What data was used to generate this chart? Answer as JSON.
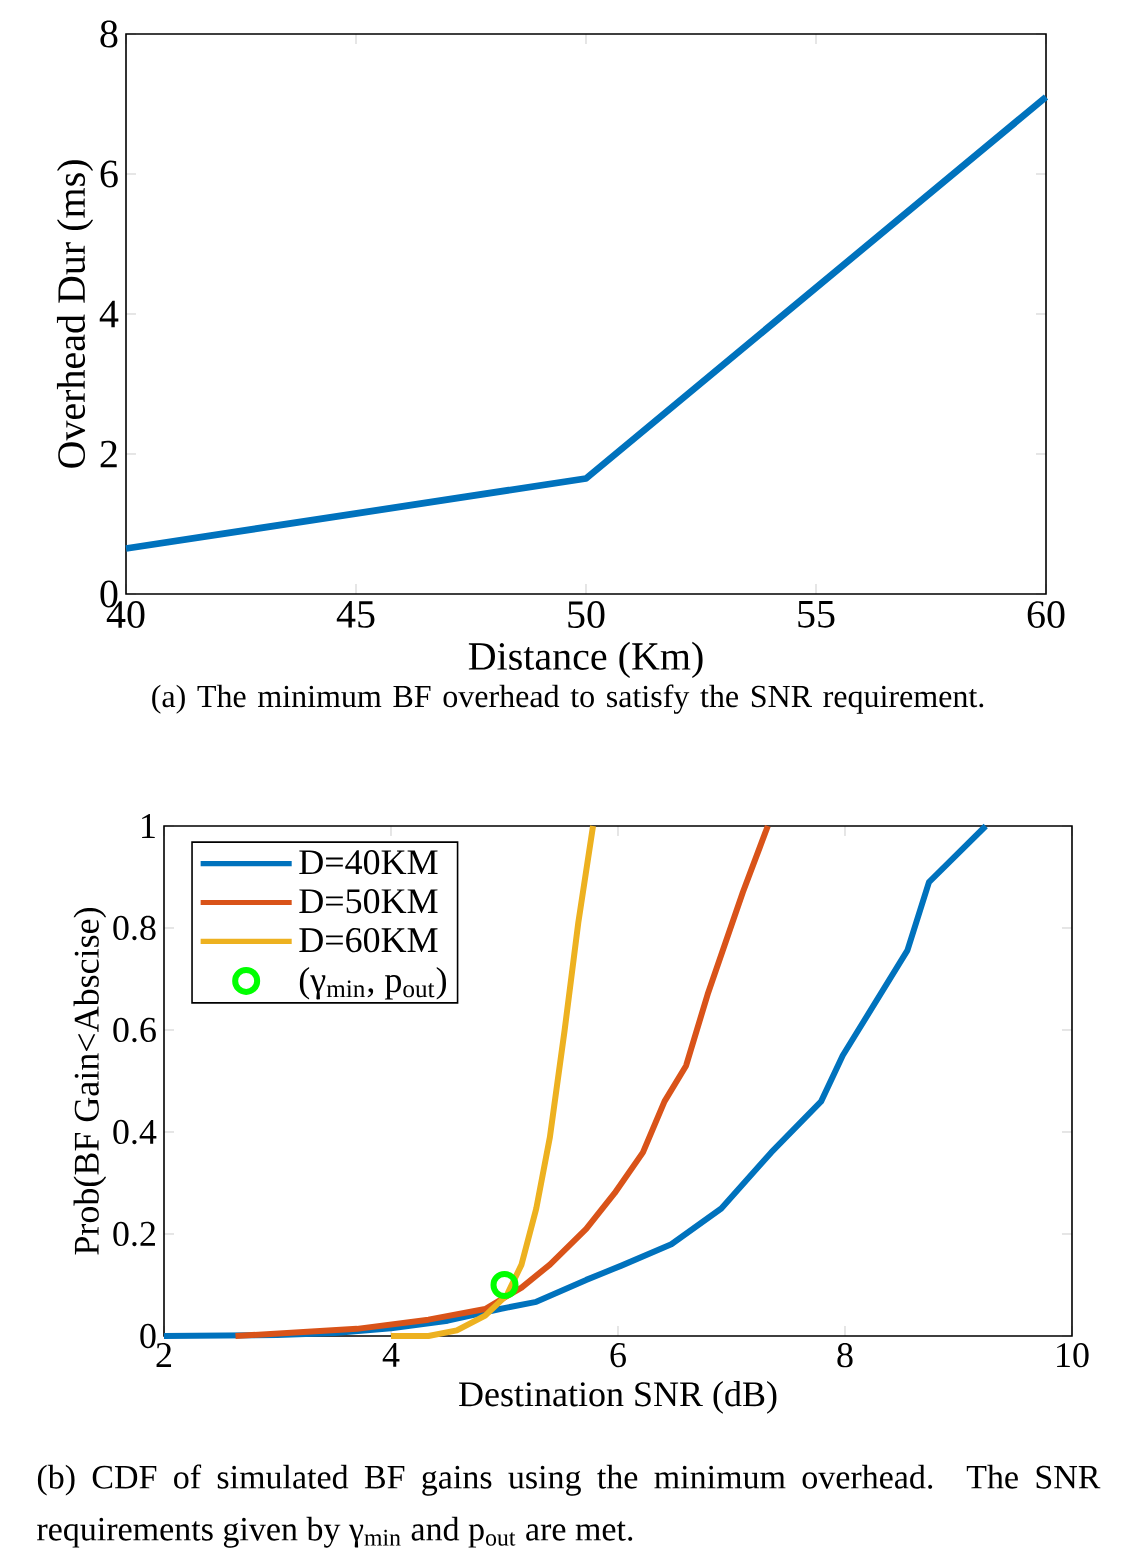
{
  "chart_data": [
    {
      "type": "line",
      "x": [
        40,
        50,
        60
      ],
      "values": [
        0.65,
        1.65,
        7.1
      ],
      "color": "#0072bd",
      "xlim": [
        40,
        60
      ],
      "ylim": [
        0,
        8
      ],
      "xticks": [
        40,
        45,
        50,
        55,
        60
      ],
      "yticks": [
        0,
        2,
        4,
        6,
        8
      ],
      "xlabel": "Distance (Km)",
      "ylabel": "Overhead Dur (ms)",
      "annotations": [
        "(a) The minimum BF overhead to satisfy the SNR requirement."
      ]
    },
    {
      "type": "line",
      "xlim": [
        2,
        10
      ],
      "ylim": [
        0,
        1
      ],
      "xticks": [
        2,
        4,
        6,
        8,
        10
      ],
      "yticks": [
        0,
        0.2,
        0.4,
        0.6,
        0.8,
        1
      ],
      "xlabel": "Destination SNR (dB)",
      "ylabel": "Prob(BF Gain<Abscise)",
      "legend": "top left",
      "series": [
        {
          "name": "D=40KM",
          "color": "#0072bd",
          "x": [
            2,
            3,
            3.5,
            4,
            4.5,
            4.96,
            5.28,
            5.72,
            6.03,
            6.47,
            6.91,
            7.35,
            7.79,
            7.98,
            8.55,
            8.74,
            9.24
          ],
          "values": [
            0,
            0.002,
            0.006,
            0.015,
            0.03,
            0.053,
            0.067,
            0.11,
            0.138,
            0.18,
            0.25,
            0.36,
            0.46,
            0.55,
            0.756,
            0.89,
            1
          ]
        },
        {
          "name": "D=50KM",
          "color": "#d95319",
          "x": [
            2.63,
            3.7,
            4.33,
            4.83,
            5.15,
            5.4,
            5.72,
            5.97,
            6.22,
            6.41,
            6.6,
            6.79,
            7.1,
            7.32
          ],
          "values": [
            0,
            0.014,
            0.032,
            0.053,
            0.095,
            0.14,
            0.21,
            0.28,
            0.36,
            0.46,
            0.53,
            0.67,
            0.87,
            1
          ]
        },
        {
          "name": "D=60KM",
          "color": "#edb120",
          "x": [
            4.0,
            4.33,
            4.58,
            4.83,
            5.02,
            5.15,
            5.28,
            5.4,
            5.53,
            5.65,
            5.78
          ],
          "values": [
            0,
            0,
            0.011,
            0.04,
            0.08,
            0.14,
            0.25,
            0.39,
            0.6,
            0.81,
            1
          ]
        },
        {
          "name": "(γ$_{min}$, p$_{out}$)",
          "type": "scatter",
          "marker": "circle",
          "color": "#00ff00",
          "x": [
            5
          ],
          "values": [
            0.1
          ]
        }
      ],
      "annotations": [
        "(b) CDF of simulated BF gains using the minimum overhead. The SNR requirements given by γ$_{min}$ and p$_{out}$ are met."
      ]
    }
  ]
}
